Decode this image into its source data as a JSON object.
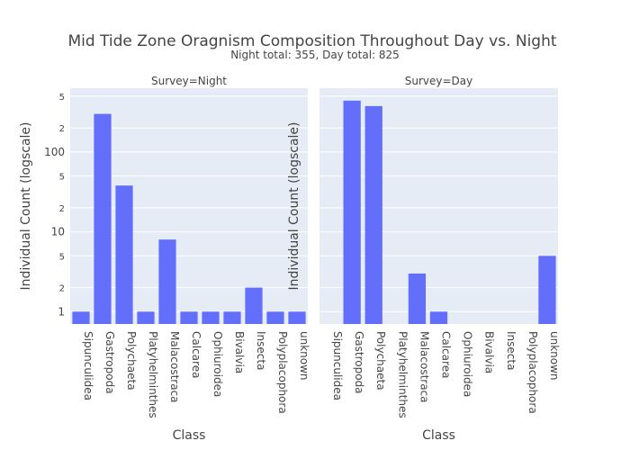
{
  "chart_data": {
    "type": "bar",
    "title": "Mid Tide Zone Oragnism Composition Throughout Day vs. Night",
    "subtitle": "Night total: 355, Day total: 825",
    "x_label": "Class",
    "y_label": "Individual Count (logscale)",
    "categories": [
      "Sipunculidea",
      "Gastropoda",
      "Polychaeta",
      "Platyhelminthes",
      "Malacostraca",
      "Calcarea",
      "Ophiuroidea",
      "Bivalvia",
      "Insecta",
      "Polyplacophora",
      "unknown"
    ],
    "series": [
      {
        "name": "Survey=Night",
        "color": "#636efa",
        "values": [
          1,
          300,
          38,
          1,
          8,
          1,
          1,
          1,
          2,
          1,
          1
        ]
      },
      {
        "name": "Survey=Day",
        "color": "#636efa",
        "values": [
          null,
          440,
          376,
          null,
          3,
          1,
          null,
          null,
          null,
          null,
          5
        ]
      }
    ],
    "log_y": true,
    "ylim": [
      0.7,
      630
    ],
    "yticks": [
      1,
      2,
      5,
      10,
      {
        "value": 20,
        "label": "2"
      },
      {
        "value": 50,
        "label": "5"
      },
      100,
      {
        "value": 200,
        "label": "2"
      },
      {
        "value": 500,
        "label": "5"
      }
    ],
    "grid": true
  }
}
